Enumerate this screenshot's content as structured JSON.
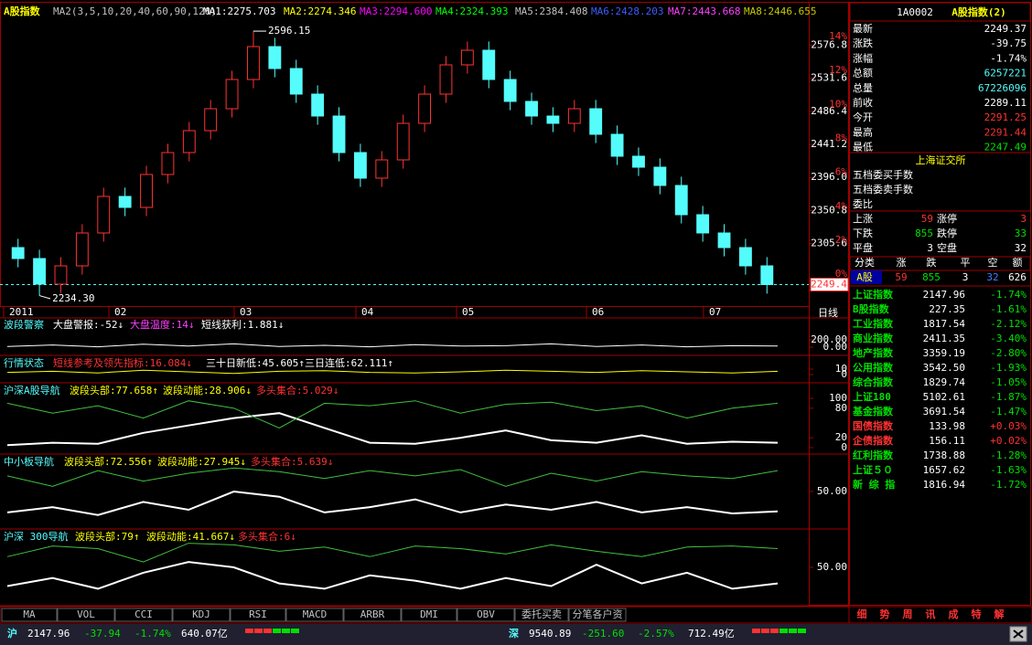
{
  "top_bar": {
    "title": "A股指数",
    "params": "MA2(3,5,10,20,40,60,90,120)",
    "ma": [
      {
        "label": "MA1:2275.703",
        "color": "#ffffff"
      },
      {
        "label": "MA2:2274.346",
        "color": "#ffff00"
      },
      {
        "label": "MA3:2294.600",
        "color": "#ff00ff"
      },
      {
        "label": "MA4:2324.393",
        "color": "#00ff00"
      },
      {
        "label": "MA5:2384.408",
        "color": "#c0c0c0"
      },
      {
        "label": "MA6:2428.203",
        "color": "#3c5cff"
      },
      {
        "label": "MA7:2443.668",
        "color": "#ff40ff"
      },
      {
        "label": "MA8:2446.655",
        "color": "#c8c800"
      }
    ]
  },
  "price_chart": {
    "type": "candlestick",
    "open": [
      2300,
      2285,
      2250,
      2275,
      2320,
      2370,
      2355,
      2400,
      2430,
      2460,
      2490,
      2530,
      2575,
      2545,
      2510,
      2480,
      2430,
      2395,
      2420,
      2470,
      2510,
      2550,
      2570,
      2530,
      2500,
      2480,
      2470,
      2490,
      2455,
      2425,
      2410,
      2385,
      2345,
      2320,
      2300,
      2275
    ],
    "close": [
      2285,
      2250,
      2275,
      2320,
      2370,
      2355,
      2400,
      2430,
      2460,
      2490,
      2530,
      2575,
      2545,
      2510,
      2480,
      2430,
      2395,
      2420,
      2470,
      2510,
      2550,
      2570,
      2530,
      2500,
      2480,
      2470,
      2490,
      2455,
      2425,
      2410,
      2385,
      2345,
      2320,
      2300,
      2275,
      2249.4
    ],
    "high": [
      2312,
      2297,
      2287,
      2332,
      2382,
      2382,
      2412,
      2442,
      2472,
      2502,
      2542,
      2596.15,
      2587,
      2557,
      2522,
      2492,
      2442,
      2432,
      2482,
      2522,
      2562,
      2582,
      2582,
      2542,
      2512,
      2492,
      2502,
      2502,
      2467,
      2437,
      2422,
      2397,
      2357,
      2332,
      2312,
      2287
    ],
    "low": [
      2273,
      2234.3,
      2238,
      2263,
      2308,
      2343,
      2343,
      2388,
      2418,
      2448,
      2478,
      2518,
      2533,
      2498,
      2468,
      2418,
      2383,
      2383,
      2408,
      2458,
      2498,
      2538,
      2518,
      2488,
      2468,
      2458,
      2458,
      2443,
      2413,
      2398,
      2373,
      2333,
      2308,
      2288,
      2263,
      2237
    ],
    "up_color": "#ff3232",
    "down_color": "#54fcfc",
    "ylim": [
      2220,
      2620
    ],
    "yticks": [
      {
        "value": 2576.8,
        "label": "2576.8"
      },
      {
        "value": 2531.6,
        "label": "2531.6"
      },
      {
        "value": 2486.4,
        "label": "2486.4"
      },
      {
        "value": 2441.2,
        "label": "2441.2"
      },
      {
        "value": 2396,
        "label": "2396.0"
      },
      {
        "value": 2350.8,
        "label": "2350.8"
      },
      {
        "value": 2305.6,
        "label": "2305.6"
      }
    ],
    "pct_lim": [
      -1.88,
      15.35
    ],
    "pct_ticks": [
      {
        "value": 14,
        "label": "14%"
      },
      {
        "value": 12,
        "label": "12%"
      },
      {
        "value": 10,
        "label": "10%"
      },
      {
        "value": 8,
        "label": "8%"
      },
      {
        "value": 6,
        "label": "6%"
      },
      {
        "value": 4,
        "label": "4%"
      },
      {
        "value": 2,
        "label": "2%"
      },
      {
        "value": 0,
        "label": "0%"
      }
    ],
    "last_price": 2249.4,
    "annotations": [
      {
        "value": 2596.15,
        "label": "2596.15"
      },
      {
        "value": 2234.3,
        "label": "2234.30"
      }
    ],
    "months": [
      "2011",
      "02",
      "03",
      "04",
      "05",
      "06",
      "07"
    ],
    "period": "日线"
  },
  "indicator_panels": [
    {
      "title": "波段警察",
      "items": [
        {
          "text": "大盘警报:-52↓",
          "color": "#ffffff"
        },
        {
          "text": "大盘温度:14↓",
          "color": "#ff40ff"
        },
        {
          "text": "短线获利:1.881↓",
          "color": "#ffffff"
        }
      ],
      "ylim": [
        -200,
        800
      ],
      "yticks": [
        {
          "value": 200,
          "label": "200.00"
        },
        {
          "value": 0,
          "label": "0.00"
        }
      ],
      "lines": [
        {
          "color": "#ffffff",
          "values": [
            20,
            60,
            10,
            80,
            30,
            90,
            20,
            50,
            10,
            70,
            30,
            40,
            90,
            20,
            60,
            10,
            40,
            30
          ]
        }
      ]
    },
    {
      "title": "行情状态",
      "items": [
        {
          "text": "短线参考及领先指标:16.084↓",
          "color": "#ff3232"
        },
        {
          "text": "三十日新低:45.605↑",
          "color": "#ffffff"
        },
        {
          "text": "三日连低:62.111↑",
          "color": "#ffffff"
        }
      ],
      "ylim": [
        -13.3,
        33.3
      ],
      "yticks": [
        10,
        0
      ],
      "lines": [
        {
          "color": "#ffff00",
          "values": [
            4,
            6,
            3,
            8,
            5,
            2,
            6,
            7,
            4,
            3,
            5,
            8,
            6,
            4,
            7,
            5,
            3,
            6
          ]
        }
      ]
    },
    {
      "title": "沪深A股导航",
      "items": [
        {
          "text": "波段头部:77.658↑",
          "color": "#ffff00"
        },
        {
          "text": "波段动能:28.906↓",
          "color": "#ffff00"
        },
        {
          "text": "多头集合:5.029↓",
          "color": "#ff3232"
        }
      ],
      "ylim": [
        -11.1,
        129.6
      ],
      "yticks": [
        100,
        80,
        20,
        0
      ],
      "lines": [
        {
          "color": "#ffffff",
          "values": [
            5,
            10,
            8,
            30,
            45,
            60,
            70,
            40,
            10,
            8,
            20,
            35,
            15,
            10,
            25,
            8,
            12,
            10
          ]
        },
        {
          "color": "#40c040",
          "values": [
            90,
            70,
            85,
            60,
            95,
            80,
            40,
            90,
            85,
            95,
            70,
            88,
            92,
            75,
            85,
            60,
            80,
            90
          ]
        }
      ]
    },
    {
      "title": "中小板导航",
      "items": [
        {
          "text": "波段头部:72.556↑",
          "color": "#ffff00"
        },
        {
          "text": "波段动能:27.945↓",
          "color": "#ffff00"
        },
        {
          "text": "多头集合:5.639↓",
          "color": "#ff3232"
        }
      ],
      "ylim": [
        -20,
        120
      ],
      "yticks": [
        {
          "value": 50,
          "label": "50.00"
        }
      ],
      "lines": [
        {
          "color": "#ffffff",
          "values": [
            10,
            20,
            5,
            30,
            15,
            50,
            40,
            10,
            20,
            35,
            10,
            25,
            15,
            30,
            10,
            20,
            8,
            12
          ]
        },
        {
          "color": "#40c040",
          "values": [
            80,
            60,
            90,
            70,
            85,
            95,
            88,
            75,
            90,
            80,
            92,
            60,
            85,
            70,
            88,
            80,
            75,
            90
          ]
        }
      ]
    },
    {
      "title": "沪深 300导航",
      "items": [
        {
          "text": "波段头部:79↑",
          "color": "#ffff00"
        },
        {
          "text": "波段动能:41.667↓",
          "color": "#ffff00"
        },
        {
          "text": "多头集合:6↓",
          "color": "#ff3232"
        }
      ],
      "ylim": [
        -20,
        120
      ],
      "yticks": [
        {
          "value": 50,
          "label": "50.00"
        }
      ],
      "lines": [
        {
          "color": "#ffffff",
          "values": [
            15,
            30,
            10,
            40,
            60,
            50,
            20,
            10,
            35,
            25,
            10,
            30,
            15,
            55,
            20,
            40,
            10,
            20
          ]
        },
        {
          "color": "#40c040",
          "values": [
            70,
            90,
            85,
            60,
            95,
            92,
            80,
            88,
            70,
            90,
            85,
            75,
            92,
            80,
            70,
            88,
            90,
            85
          ]
        }
      ]
    }
  ],
  "tabs": [
    "MA",
    "VOL",
    "CCI",
    "KDJ",
    "RSI",
    "MACD",
    "ARBR",
    "DMI",
    "OBV",
    "委托买卖",
    "分笔各户资"
  ],
  "quote_panel": {
    "code": "1A0002",
    "name": "A股指数(2)",
    "rows": [
      {
        "label": "最新",
        "value": "2249.37",
        "color": "#ffffff"
      },
      {
        "label": "涨跌",
        "value": "-39.75",
        "color": "#ffffff"
      },
      {
        "label": "涨幅",
        "value": "-1.74%",
        "color": "#ffffff"
      },
      {
        "label": "总额",
        "value": "6257221",
        "color": "#54fcfc"
      },
      {
        "label": "总量",
        "value": "67226096",
        "color": "#54fcfc"
      },
      {
        "label": "前收",
        "value": "2289.11",
        "color": "#ffffff"
      },
      {
        "label": "今开",
        "value": "2291.25",
        "color": "#ff3232"
      },
      {
        "label": "最高",
        "value": "2291.44",
        "color": "#ff3232"
      },
      {
        "label": "最低",
        "value": "2247.49",
        "color": "#00e000"
      }
    ],
    "exchange": "上海证交所",
    "order_rows": [
      "五档委买手数",
      "五档委卖手数",
      "委比"
    ],
    "stats": [
      [
        "上涨",
        "59",
        "涨停",
        "3"
      ],
      [
        "下跌",
        "855",
        "跌停",
        "33"
      ],
      [
        "平盘",
        "3",
        "空盘",
        "32"
      ]
    ],
    "table_header": [
      "分类",
      "涨",
      "跌",
      "平",
      "空",
      "额"
    ],
    "table_row": [
      "A股",
      "59",
      "855",
      "3",
      "32",
      "626"
    ],
    "indices": [
      {
        "name": "上证指数",
        "value": "2147.96",
        "change": "-1.74%",
        "color": "#00e000"
      },
      {
        "name": "B股指数",
        "value": "227.35",
        "change": "-1.61%",
        "color": "#00e000"
      },
      {
        "name": "工业指数",
        "value": "1817.54",
        "change": "-2.12%",
        "color": "#00e000"
      },
      {
        "name": "商业指数",
        "value": "2411.35",
        "change": "-3.40%",
        "color": "#00e000"
      },
      {
        "name": "地产指数",
        "value": "3359.19",
        "change": "-2.80%",
        "color": "#00e000"
      },
      {
        "name": "公用指数",
        "value": "3542.50",
        "change": "-1.93%",
        "color": "#00e000"
      },
      {
        "name": "综合指数",
        "value": "1829.74",
        "change": "-1.05%",
        "color": "#00e000"
      },
      {
        "name": "上证180",
        "value": "5102.61",
        "change": "-1.87%",
        "color": "#00e000"
      },
      {
        "name": "基金指数",
        "value": "3691.54",
        "change": "-1.47%",
        "color": "#00e000"
      },
      {
        "name": "国债指数",
        "value": "133.98",
        "change": "+0.03%",
        "color": "#ff3232"
      },
      {
        "name": "企债指数",
        "value": "156.11",
        "change": "+0.02%",
        "color": "#ff3232"
      },
      {
        "name": "红利指数",
        "value": "1738.88",
        "change": "-1.28%",
        "color": "#00e000"
      },
      {
        "name": "上证５０",
        "value": "1657.62",
        "change": "-1.63%",
        "color": "#00e000"
      },
      {
        "name": "新 综 指",
        "value": "1816.94",
        "change": "-1.72%",
        "color": "#00e000"
      }
    ],
    "bottom_tabs": [
      "细",
      "势",
      "周",
      "讯",
      "成",
      "特",
      "解"
    ]
  },
  "status_bar": {
    "sh": [
      "沪",
      "2147.96",
      "-37.94",
      "-1.74%",
      "640.07亿"
    ],
    "sz": [
      "深",
      "9540.89",
      "-251.60",
      "-2.57%",
      "712.49亿"
    ]
  }
}
